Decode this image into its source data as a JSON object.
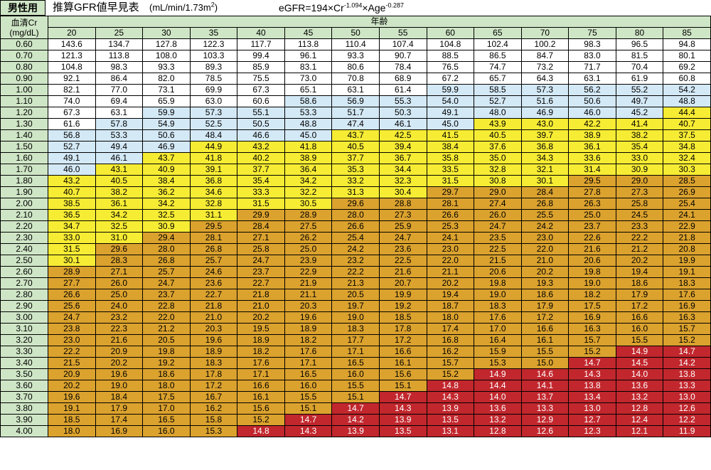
{
  "header": {
    "badge": "男性用",
    "title": "推算GFR値早見表",
    "unit_text": "(mL/min/1.73m",
    "unit_sup": "2",
    "unit_close": ")",
    "formula": {
      "part1": "eGFR=194×Cr",
      "exp1": "-1.094",
      "part2": "×Age",
      "exp2": "-0.287"
    }
  },
  "table": {
    "cr_header_line1": "血清Cr",
    "cr_header_line2": "(mg/dL)",
    "age_header": "年齢",
    "ages": [
      "20",
      "25",
      "30",
      "35",
      "40",
      "45",
      "50",
      "55",
      "60",
      "65",
      "70",
      "75",
      "80",
      "85"
    ],
    "rows": [
      {
        "cr": "0.60",
        "values": [
          "143.6",
          "134.7",
          "127.8",
          "122.3",
          "117.7",
          "113.8",
          "110.4",
          "107.4",
          "104.8",
          "102.4",
          "100.2",
          "98.3",
          "96.5",
          "94.8"
        ]
      },
      {
        "cr": "0.70",
        "values": [
          "121.3",
          "113.8",
          "108.0",
          "103.3",
          "99.4",
          "96.1",
          "93.3",
          "90.7",
          "88.5",
          "86.5",
          "84.7",
          "83.0",
          "81.5",
          "80.1"
        ]
      },
      {
        "cr": "0.80",
        "values": [
          "104.8",
          "98.3",
          "93.3",
          "89.3",
          "85.9",
          "83.1",
          "80.6",
          "78.4",
          "76.5",
          "74.7",
          "73.2",
          "71.7",
          "70.4",
          "69.2"
        ]
      },
      {
        "cr": "0.90",
        "values": [
          "92.1",
          "86.4",
          "82.0",
          "78.5",
          "75.5",
          "73.0",
          "70.8",
          "68.9",
          "67.2",
          "65.7",
          "64.3",
          "63.1",
          "61.9",
          "60.8"
        ]
      },
      {
        "cr": "1.00",
        "values": [
          "82.1",
          "77.0",
          "73.1",
          "69.9",
          "67.3",
          "65.1",
          "63.1",
          "61.4",
          "59.9",
          "58.5",
          "57.3",
          "56.2",
          "55.2",
          "54.2"
        ]
      },
      {
        "cr": "1.10",
        "values": [
          "74.0",
          "69.4",
          "65.9",
          "63.0",
          "60.6",
          "58.6",
          "56.9",
          "55.3",
          "54.0",
          "52.7",
          "51.6",
          "50.6",
          "49.7",
          "48.8"
        ]
      },
      {
        "cr": "1.20",
        "values": [
          "67.3",
          "63.1",
          "59.9",
          "57.3",
          "55.1",
          "53.3",
          "51.7",
          "50.3",
          "49.1",
          "48.0",
          "46.9",
          "46.0",
          "45.2",
          "44.4"
        ]
      },
      {
        "cr": "1.30",
        "values": [
          "61.6",
          "57.8",
          "54.9",
          "52.5",
          "50.5",
          "48.8",
          "47.4",
          "46.1",
          "45.0",
          "43.9",
          "43.0",
          "42.2",
          "41.4",
          "40.7"
        ]
      },
      {
        "cr": "1.40",
        "values": [
          "56.8",
          "53.3",
          "50.6",
          "48.4",
          "46.6",
          "45.0",
          "43.7",
          "42.5",
          "41.5",
          "40.5",
          "39.7",
          "38.9",
          "38.2",
          "37.5"
        ]
      },
      {
        "cr": "1.50",
        "values": [
          "52.7",
          "49.4",
          "46.9",
          "44.9",
          "43.2",
          "41.8",
          "40.5",
          "39.4",
          "38.4",
          "37.6",
          "36.8",
          "36.1",
          "35.4",
          "34.8"
        ]
      },
      {
        "cr": "1.60",
        "values": [
          "49.1",
          "46.1",
          "43.7",
          "41.8",
          "40.2",
          "38.9",
          "37.7",
          "36.7",
          "35.8",
          "35.0",
          "34.3",
          "33.6",
          "33.0",
          "32.4"
        ]
      },
      {
        "cr": "1.70",
        "values": [
          "46.0",
          "43.1",
          "40.9",
          "39.1",
          "37.7",
          "36.4",
          "35.3",
          "34.4",
          "33.5",
          "32.8",
          "32.1",
          "31.4",
          "30.9",
          "30.3"
        ]
      },
      {
        "cr": "1.80",
        "values": [
          "43.2",
          "40.5",
          "38.4",
          "36.8",
          "35.4",
          "34.2",
          "33.2",
          "32.3",
          "31.5",
          "30.8",
          "30.1",
          "29.5",
          "29.0",
          "28.5"
        ]
      },
      {
        "cr": "1.90",
        "values": [
          "40.7",
          "38.2",
          "36.2",
          "34.6",
          "33.3",
          "32.2",
          "31.3",
          "30.4",
          "29.7",
          "29.0",
          "28.4",
          "27.8",
          "27.3",
          "26.9"
        ]
      },
      {
        "cr": "2.00",
        "values": [
          "38.5",
          "36.1",
          "34.2",
          "32.8",
          "31.5",
          "30.5",
          "29.6",
          "28.8",
          "28.1",
          "27.4",
          "26.8",
          "26.3",
          "25.8",
          "25.4"
        ]
      },
      {
        "cr": "2.10",
        "values": [
          "36.5",
          "34.2",
          "32.5",
          "31.1",
          "29.9",
          "28.9",
          "28.0",
          "27.3",
          "26.6",
          "26.0",
          "25.5",
          "25.0",
          "24.5",
          "24.1"
        ]
      },
      {
        "cr": "2.20",
        "values": [
          "34.7",
          "32.5",
          "30.9",
          "29.5",
          "28.4",
          "27.5",
          "26.6",
          "25.9",
          "25.3",
          "24.7",
          "24.2",
          "23.7",
          "23.3",
          "22.9"
        ]
      },
      {
        "cr": "2.30",
        "values": [
          "33.0",
          "31.0",
          "29.4",
          "28.1",
          "27.1",
          "26.2",
          "25.4",
          "24.7",
          "24.1",
          "23.5",
          "23.0",
          "22.6",
          "22.2",
          "21.8"
        ]
      },
      {
        "cr": "2.40",
        "values": [
          "31.5",
          "29.6",
          "28.0",
          "26.8",
          "25.8",
          "25.0",
          "24.2",
          "23.6",
          "23.0",
          "22.5",
          "22.0",
          "21.6",
          "21.2",
          "20.8"
        ]
      },
      {
        "cr": "2.50",
        "values": [
          "30.1",
          "28.3",
          "26.8",
          "25.7",
          "24.7",
          "23.9",
          "23.2",
          "22.5",
          "22.0",
          "21.5",
          "21.0",
          "20.6",
          "20.2",
          "19.9"
        ]
      },
      {
        "cr": "2.60",
        "values": [
          "28.9",
          "27.1",
          "25.7",
          "24.6",
          "23.7",
          "22.9",
          "22.2",
          "21.6",
          "21.1",
          "20.6",
          "20.2",
          "19.8",
          "19.4",
          "19.1"
        ]
      },
      {
        "cr": "2.70",
        "values": [
          "27.7",
          "26.0",
          "24.7",
          "23.6",
          "22.7",
          "21.9",
          "21.3",
          "20.7",
          "20.2",
          "19.8",
          "19.3",
          "19.0",
          "18.6",
          "18.3"
        ]
      },
      {
        "cr": "2.80",
        "values": [
          "26.6",
          "25.0",
          "23.7",
          "22.7",
          "21.8",
          "21.1",
          "20.5",
          "19.9",
          "19.4",
          "19.0",
          "18.6",
          "18.2",
          "17.9",
          "17.6"
        ]
      },
      {
        "cr": "2.90",
        "values": [
          "25.6",
          "24.0",
          "22.8",
          "21.8",
          "21.0",
          "20.3",
          "19.7",
          "19.2",
          "18.7",
          "18.3",
          "17.9",
          "17.5",
          "17.2",
          "16.9"
        ]
      },
      {
        "cr": "3.00",
        "values": [
          "24.7",
          "23.2",
          "22.0",
          "21.0",
          "20.2",
          "19.6",
          "19.0",
          "18.5",
          "18.0",
          "17.6",
          "17.2",
          "16.9",
          "16.6",
          "16.3"
        ]
      },
      {
        "cr": "3.10",
        "values": [
          "23.8",
          "22.3",
          "21.2",
          "20.3",
          "19.5",
          "18.9",
          "18.3",
          "17.8",
          "17.4",
          "17.0",
          "16.6",
          "16.3",
          "16.0",
          "15.7"
        ]
      },
      {
        "cr": "3.20",
        "values": [
          "23.0",
          "21.6",
          "20.5",
          "19.6",
          "18.9",
          "18.2",
          "17.7",
          "17.2",
          "16.8",
          "16.4",
          "16.1",
          "15.7",
          "15.5",
          "15.2"
        ]
      },
      {
        "cr": "3.30",
        "values": [
          "22.2",
          "20.9",
          "19.8",
          "18.9",
          "18.2",
          "17.6",
          "17.1",
          "16.6",
          "16.2",
          "15.9",
          "15.5",
          "15.2",
          "14.9",
          "14.7"
        ]
      },
      {
        "cr": "3.40",
        "values": [
          "21.5",
          "20.2",
          "19.2",
          "18.3",
          "17.6",
          "17.1",
          "16.5",
          "16.1",
          "15.7",
          "15.3",
          "15.0",
          "14.7",
          "14.5",
          "14.2"
        ]
      },
      {
        "cr": "3.50",
        "values": [
          "20.9",
          "19.6",
          "18.6",
          "17.8",
          "17.1",
          "16.5",
          "16.0",
          "15.6",
          "15.2",
          "14.9",
          "14.6",
          "14.3",
          "14.0",
          "13.8"
        ]
      },
      {
        "cr": "3.60",
        "values": [
          "20.2",
          "19.0",
          "18.0",
          "17.2",
          "16.6",
          "16.0",
          "15.5",
          "15.1",
          "14.8",
          "14.4",
          "14.1",
          "13.8",
          "13.6",
          "13.3"
        ]
      },
      {
        "cr": "3.70",
        "values": [
          "19.6",
          "18.4",
          "17.5",
          "16.7",
          "16.1",
          "15.5",
          "15.1",
          "14.7",
          "14.3",
          "14.0",
          "13.7",
          "13.4",
          "13.2",
          "13.0"
        ]
      },
      {
        "cr": "3.80",
        "values": [
          "19.1",
          "17.9",
          "17.0",
          "16.2",
          "15.6",
          "15.1",
          "14.7",
          "14.3",
          "13.9",
          "13.6",
          "13.3",
          "13.0",
          "12.8",
          "12.6"
        ]
      },
      {
        "cr": "3.90",
        "values": [
          "18.5",
          "17.4",
          "16.5",
          "15.8",
          "15.2",
          "14.7",
          "14.2",
          "13.9",
          "13.5",
          "13.2",
          "12.9",
          "12.7",
          "12.4",
          "12.2"
        ]
      },
      {
        "cr": "4.00",
        "values": [
          "18.0",
          "16.9",
          "16.0",
          "15.3",
          "14.8",
          "14.3",
          "13.9",
          "13.5",
          "13.1",
          "12.8",
          "12.6",
          "12.3",
          "12.1",
          "11.9"
        ]
      }
    ]
  },
  "colors": {
    "header_green": "#cfe6c6",
    "white": "#ffffff",
    "light_blue": "#d4e9f6",
    "yellow": "#f7ec34",
    "orange": "#dba22e",
    "red": "#c1272d"
  }
}
